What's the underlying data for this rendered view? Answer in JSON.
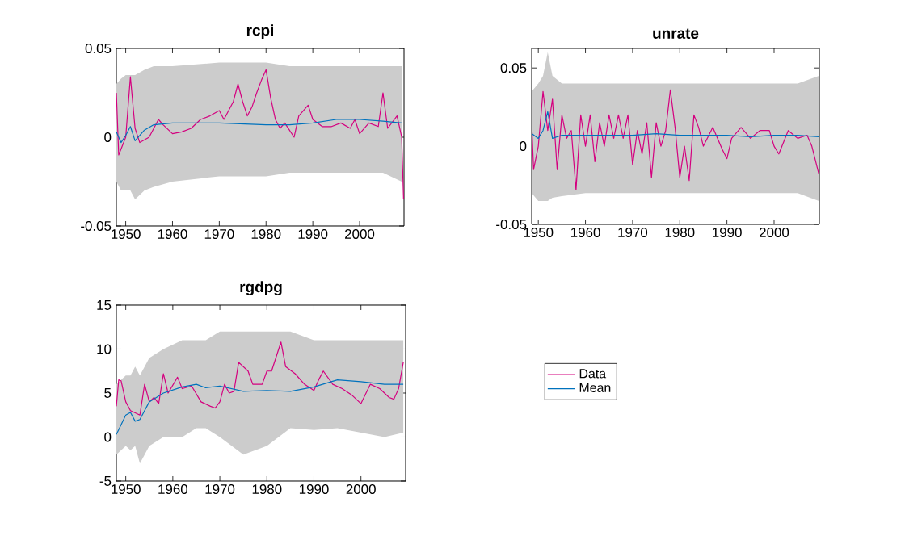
{
  "chart_data": [
    {
      "type": "line",
      "title": "rcpi",
      "xlim": [
        1948,
        2009.5
      ],
      "xticks": [
        1950,
        1960,
        1970,
        1980,
        1990,
        2000
      ],
      "ylim": [
        -0.05,
        0.05
      ],
      "yticks": [
        -0.05,
        0,
        0.05
      ],
      "grid": false,
      "legend": false,
      "series": [
        {
          "color": "#d4007f",
          "x": [
            1948,
            1948.5,
            1950,
            1951,
            1952,
            1953,
            1955,
            1957,
            1958,
            1960,
            1962,
            1964,
            1966,
            1968,
            1970,
            1971,
            1973,
            1974,
            1975,
            1976,
            1977,
            1978,
            1979,
            1980,
            1981,
            1982,
            1983,
            1984,
            1986,
            1987,
            1989,
            1990,
            1992,
            1994,
            1996,
            1998,
            1999,
            2000,
            2002,
            2004,
            2005,
            2006,
            2008,
            2009,
            2009.4
          ],
          "values": [
            0.025,
            -0.01,
            0.0,
            0.034,
            0.005,
            -0.003,
            0.0,
            0.01,
            0.007,
            0.002,
            0.003,
            0.005,
            0.01,
            0.012,
            0.015,
            0.01,
            0.02,
            0.03,
            0.02,
            0.012,
            0.017,
            0.025,
            0.032,
            0.038,
            0.022,
            0.01,
            0.005,
            0.008,
            0.0,
            0.012,
            0.018,
            0.01,
            0.006,
            0.006,
            0.008,
            0.005,
            0.01,
            0.002,
            0.008,
            0.006,
            0.025,
            0.005,
            0.012,
            0.0,
            -0.035
          ]
        },
        {
          "color": "#0072bd",
          "x": [
            1948,
            1949,
            1950,
            1951,
            1952,
            1954,
            1956,
            1960,
            1970,
            1980,
            1985,
            1990,
            1995,
            2000,
            2005,
            2009
          ],
          "values": [
            0.003,
            -0.003,
            0.001,
            0.006,
            -0.002,
            0.004,
            0.007,
            0.008,
            0.008,
            0.007,
            0.007,
            0.008,
            0.01,
            0.01,
            0.009,
            0.008
          ],
          "lower": [
            -0.025,
            -0.03,
            -0.03,
            -0.03,
            -0.035,
            -0.03,
            -0.028,
            -0.025,
            -0.022,
            -0.022,
            -0.02,
            -0.02,
            -0.02,
            -0.02,
            -0.02,
            -0.025
          ],
          "upper": [
            0.03,
            0.033,
            0.035,
            0.035,
            0.035,
            0.038,
            0.04,
            0.04,
            0.042,
            0.042,
            0.04,
            0.04,
            0.04,
            0.04,
            0.04,
            0.04
          ]
        }
      ]
    },
    {
      "type": "line",
      "title": "unrate",
      "xlim": [
        1948.6,
        2009.6
      ],
      "xticks": [
        1950,
        1960,
        1970,
        1980,
        1990,
        2000
      ],
      "ylim": [
        -0.05,
        0.0625
      ],
      "yticks": [
        -0.05,
        0,
        0.05
      ],
      "grid": false,
      "legend": false,
      "series": [
        {
          "color": "#d4007f",
          "x": [
            1948.6,
            1949,
            1950,
            1951,
            1952,
            1953,
            1954,
            1955,
            1956,
            1957,
            1958,
            1959,
            1960,
            1961,
            1962,
            1963,
            1964,
            1965,
            1966,
            1967,
            1968,
            1969,
            1970,
            1971,
            1972,
            1973,
            1974,
            1975,
            1976,
            1977,
            1978,
            1979,
            1980,
            1981,
            1982,
            1983,
            1984,
            1985,
            1987,
            1988,
            1989,
            1990,
            1991,
            1993,
            1995,
            1997,
            1999,
            2000,
            2001,
            2003,
            2005,
            2007,
            2008,
            2009.5
          ],
          "values": [
            0.015,
            -0.015,
            0.0,
            0.035,
            0.01,
            0.03,
            -0.015,
            0.02,
            0.005,
            0.01,
            -0.028,
            0.02,
            0.0,
            0.02,
            -0.01,
            0.015,
            0.0,
            0.02,
            0.005,
            0.02,
            0.005,
            0.02,
            -0.012,
            0.01,
            -0.005,
            0.015,
            -0.02,
            0.015,
            0.0,
            0.01,
            0.036,
            0.012,
            -0.02,
            0.0,
            -0.022,
            0.02,
            0.012,
            0.0,
            0.012,
            0.005,
            -0.002,
            -0.008,
            0.005,
            0.012,
            0.005,
            0.01,
            0.01,
            0.0,
            -0.005,
            0.01,
            0.005,
            0.007,
            0.0,
            -0.018
          ]
        },
        {
          "color": "#0072bd",
          "x": [
            1948.6,
            1950,
            1951,
            1952,
            1953,
            1955,
            1960,
            1970,
            1975,
            1980,
            1990,
            1995,
            2000,
            2005,
            2009.5
          ],
          "values": [
            0.008,
            0.005,
            0.01,
            0.022,
            0.005,
            0.007,
            0.007,
            0.007,
            0.008,
            0.007,
            0.007,
            0.006,
            0.007,
            0.007,
            0.006
          ],
          "lower": [
            -0.03,
            -0.035,
            -0.035,
            -0.035,
            -0.033,
            -0.032,
            -0.03,
            -0.03,
            -0.03,
            -0.03,
            -0.03,
            -0.03,
            -0.03,
            -0.03,
            -0.035
          ],
          "upper": [
            0.035,
            0.04,
            0.045,
            0.06,
            0.045,
            0.04,
            0.04,
            0.04,
            0.04,
            0.04,
            0.04,
            0.04,
            0.04,
            0.04,
            0.045
          ]
        }
      ]
    },
    {
      "type": "line",
      "title": "rgdpg",
      "xlim": [
        1948,
        2009.5
      ],
      "xticks": [
        1950,
        1960,
        1970,
        1980,
        1990,
        2000
      ],
      "ylim": [
        -5,
        15
      ],
      "yticks": [
        -5,
        0,
        5,
        10,
        15
      ],
      "grid": false,
      "legend": "right",
      "series": [
        {
          "name": "Data",
          "color": "#d4007f",
          "x": [
            1948,
            1948.5,
            1949,
            1950,
            1951,
            1953,
            1954,
            1955,
            1956,
            1957,
            1958,
            1959,
            1961,
            1962,
            1964,
            1966,
            1968,
            1969,
            1970,
            1971,
            1972,
            1973,
            1974,
            1976,
            1977,
            1979,
            1980,
            1981,
            1983,
            1984,
            1986,
            1988,
            1990,
            1991,
            1992,
            1994,
            1996,
            1998,
            2000,
            2002,
            2004,
            2006,
            2007,
            2008,
            2009
          ],
          "values": [
            3.5,
            6.5,
            6.4,
            4,
            3,
            2.5,
            6,
            4,
            4.5,
            3.8,
            7.2,
            5,
            6.8,
            5.5,
            5.8,
            4,
            3.5,
            3.3,
            4,
            6,
            5,
            5.2,
            8.5,
            7.5,
            6,
            6,
            7.5,
            7.5,
            10.8,
            8,
            7.2,
            6,
            5.3,
            6.5,
            7.5,
            6,
            5.5,
            4.8,
            3.8,
            6,
            5.5,
            4.5,
            4.3,
            5.5,
            8.5
          ]
        },
        {
          "name": "Mean",
          "color": "#0072bd",
          "x": [
            1948,
            1950,
            1951,
            1952,
            1953,
            1955,
            1958,
            1962,
            1965,
            1967,
            1970,
            1975,
            1980,
            1985,
            1990,
            1995,
            2000,
            2005,
            2009
          ],
          "values": [
            0.3,
            2.5,
            2.8,
            1.8,
            2,
            4,
            5,
            5.7,
            6,
            5.6,
            5.8,
            5.2,
            5.3,
            5.2,
            5.7,
            6.5,
            6.3,
            6,
            6
          ],
          "lower": [
            -2,
            -1,
            -1.5,
            -1,
            -3,
            -1,
            0,
            0,
            1,
            1,
            0,
            -2,
            -1,
            1,
            0.8,
            1,
            0.5,
            0,
            0.5
          ],
          "upper": [
            6,
            7,
            7,
            8,
            7,
            9,
            10,
            11,
            11,
            11,
            12,
            12,
            12,
            12,
            11,
            11,
            11,
            11,
            11
          ]
        }
      ]
    }
  ]
}
